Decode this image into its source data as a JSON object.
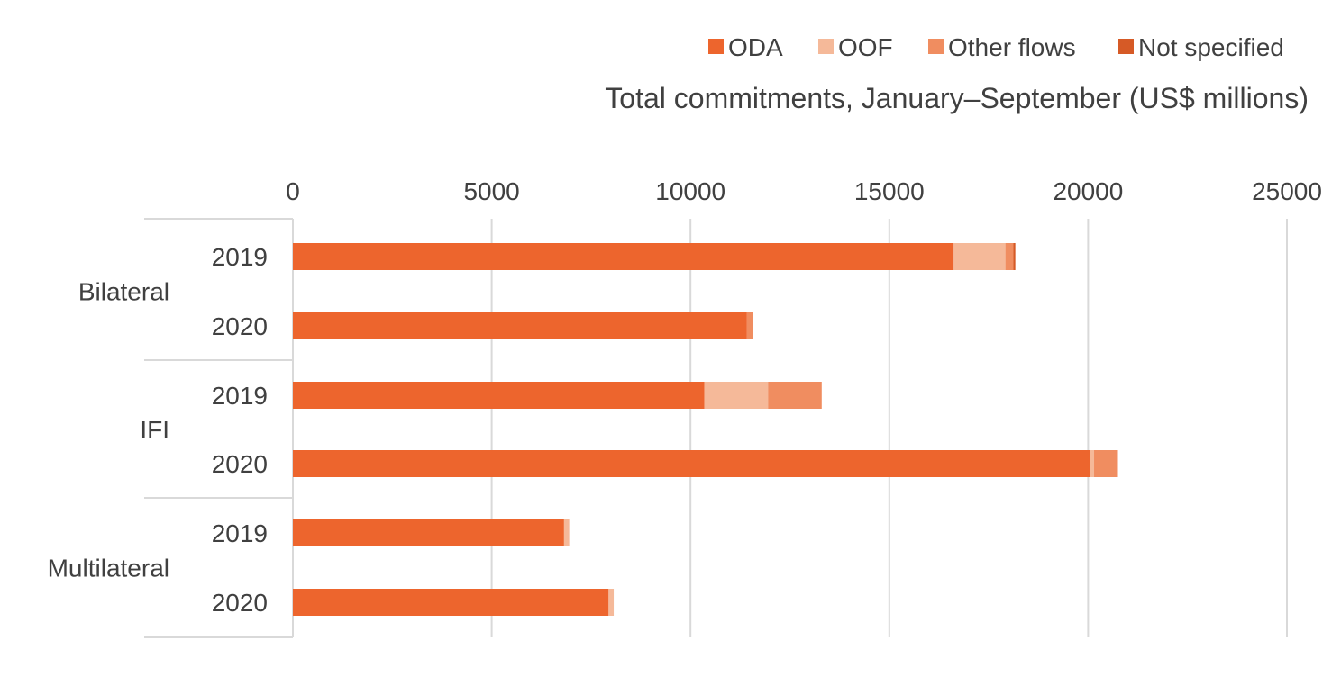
{
  "chart_data": {
    "type": "bar",
    "orientation": "horizontal",
    "stacked": true,
    "title": "",
    "subtitle": "Total commitments, January–September (US$ millions)",
    "xlabel": "",
    "ylabel": "",
    "xlim": [
      0,
      25000
    ],
    "x_ticks": [
      "0",
      "5000",
      "10000",
      "15000",
      "20000",
      "25000"
    ],
    "axis_position": "top",
    "grid": true,
    "legend_position": "top-right",
    "groups": [
      {
        "label": "Bilateral",
        "categories": [
          "2019",
          "2020"
        ]
      },
      {
        "label": "IFI",
        "categories": [
          "2019",
          "2020"
        ]
      },
      {
        "label": "Multilateral",
        "categories": [
          "2019",
          "2020"
        ]
      }
    ],
    "series": [
      {
        "name": "ODA",
        "color": "#ED652D",
        "values": [
          16620,
          11420,
          10350,
          20050,
          6820,
          7940
        ]
      },
      {
        "name": "OOF",
        "color": "#F5B999",
        "values": [
          1300,
          0,
          1600,
          100,
          130,
          130
        ]
      },
      {
        "name": "Other flows",
        "color": "#F08D60",
        "values": [
          200,
          150,
          1350,
          600,
          0,
          0
        ]
      },
      {
        "name": "Not specified",
        "color": "#D65A26",
        "values": [
          50,
          0,
          0,
          0,
          0,
          0
        ]
      }
    ]
  }
}
